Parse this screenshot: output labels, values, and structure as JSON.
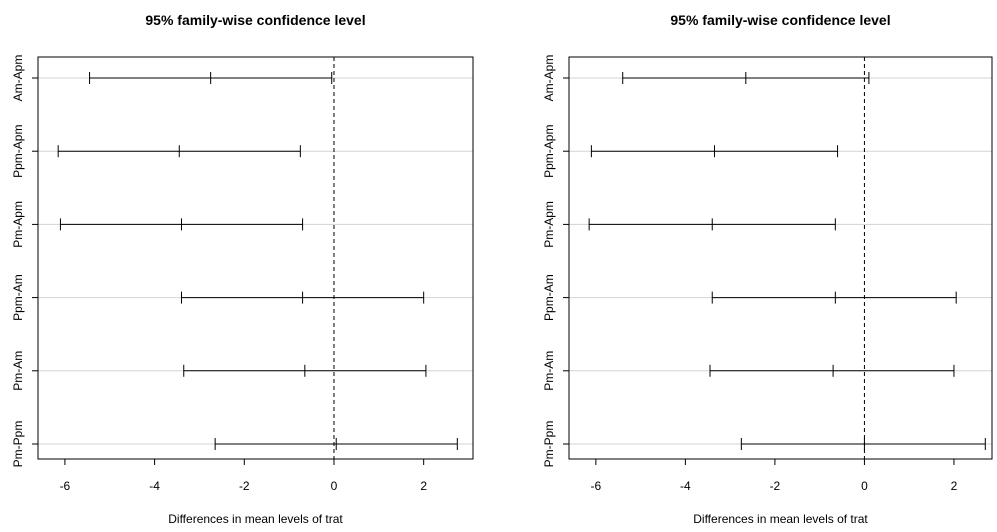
{
  "chart_data": [
    {
      "type": "interval",
      "title": "95% family-wise confidence level",
      "xlabel": "Differences in mean levels of trat",
      "xlim": [
        -6.6,
        3.1
      ],
      "xticks": [
        "-6",
        "-4",
        "-2",
        "0",
        "2"
      ],
      "reference_line": 0,
      "grid": "horizontal",
      "intervals": [
        {
          "label": "Am-Apm",
          "lwr": -5.45,
          "estimate": -2.75,
          "upr": -0.05
        },
        {
          "label": "Ppm-Apm",
          "lwr": -6.15,
          "estimate": -3.45,
          "upr": -0.75
        },
        {
          "label": "Pm-Apm",
          "lwr": -6.1,
          "estimate": -3.4,
          "upr": -0.7
        },
        {
          "label": "Ppm-Am",
          "lwr": -3.4,
          "estimate": -0.7,
          "upr": 2.0
        },
        {
          "label": "Pm-Am",
          "lwr": -3.35,
          "estimate": -0.65,
          "upr": 2.05
        },
        {
          "label": "Pm-Ppm",
          "lwr": -2.65,
          "estimate": 0.05,
          "upr": 2.75
        }
      ]
    },
    {
      "type": "interval",
      "title": "95% family-wise confidence level",
      "xlabel": "Differences in mean levels of trat",
      "xlim": [
        -6.6,
        2.85
      ],
      "xticks": [
        "-6",
        "-4",
        "-2",
        "0",
        "2"
      ],
      "reference_line": 0,
      "grid": "horizontal",
      "intervals": [
        {
          "label": "Am-Apm",
          "lwr": -5.4,
          "estimate": -2.65,
          "upr": 0.1
        },
        {
          "label": "Ppm-Apm",
          "lwr": -6.1,
          "estimate": -3.35,
          "upr": -0.6
        },
        {
          "label": "Pm-Apm",
          "lwr": -6.15,
          "estimate": -3.4,
          "upr": -0.65
        },
        {
          "label": "Ppm-Am",
          "lwr": -3.4,
          "estimate": -0.65,
          "upr": 2.05
        },
        {
          "label": "Pm-Am",
          "lwr": -3.45,
          "estimate": -0.7,
          "upr": 2.0
        },
        {
          "label": "Pm-Ppm",
          "lwr": -2.75,
          "estimate": 0.0,
          "upr": 2.7
        }
      ]
    }
  ]
}
